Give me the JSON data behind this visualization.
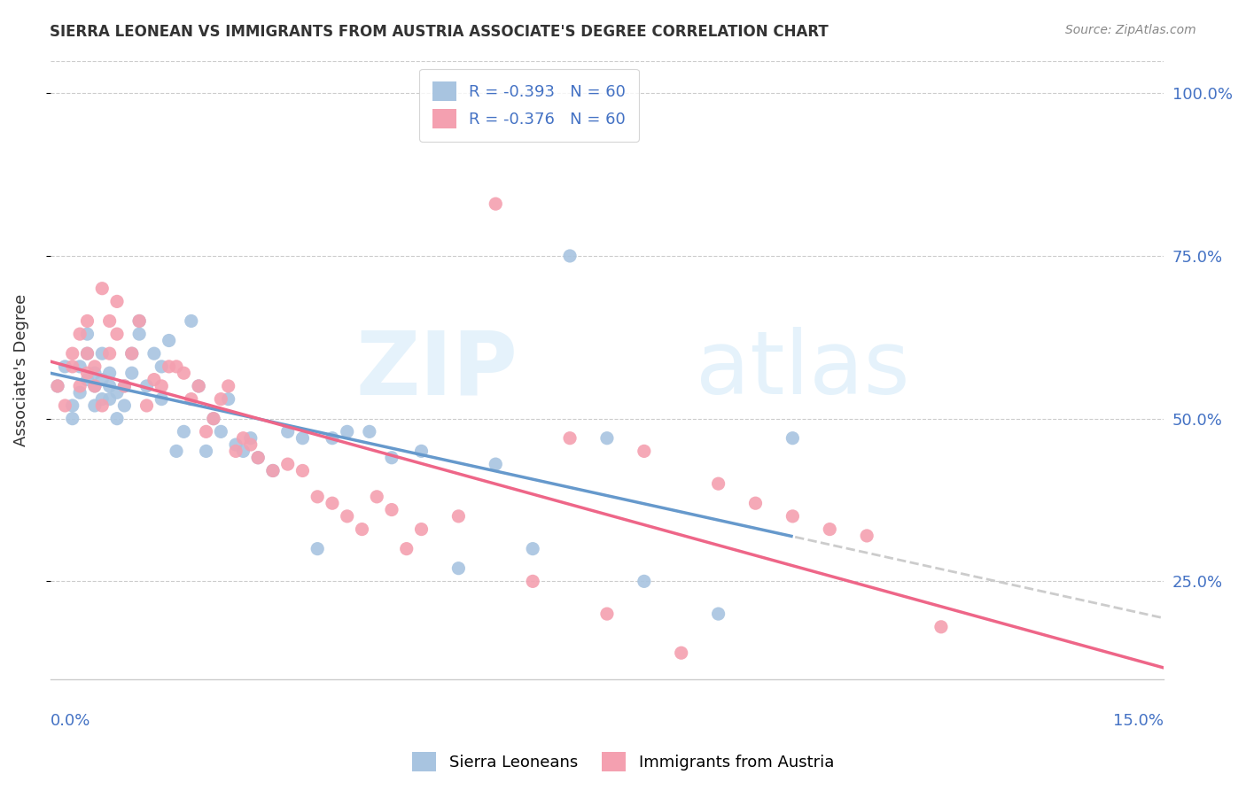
{
  "title": "SIERRA LEONEAN VS IMMIGRANTS FROM AUSTRIA ASSOCIATE'S DEGREE CORRELATION CHART",
  "source": "Source: ZipAtlas.com",
  "ylabel": "Associate's Degree",
  "xmin": 0.0,
  "xmax": 0.15,
  "ymin": 0.1,
  "ymax": 1.05,
  "color_blue": "#a8c4e0",
  "color_pink": "#f4a0b0",
  "color_trendline_blue": "#6699cc",
  "color_trendline_pink": "#ee6688",
  "color_trendline_ext": "#cccccc",
  "sierra_x": [
    0.001,
    0.002,
    0.003,
    0.003,
    0.004,
    0.004,
    0.005,
    0.005,
    0.005,
    0.006,
    0.006,
    0.006,
    0.007,
    0.007,
    0.007,
    0.008,
    0.008,
    0.008,
    0.009,
    0.009,
    0.01,
    0.01,
    0.011,
    0.011,
    0.012,
    0.012,
    0.013,
    0.014,
    0.015,
    0.015,
    0.016,
    0.017,
    0.018,
    0.019,
    0.02,
    0.021,
    0.022,
    0.023,
    0.024,
    0.025,
    0.026,
    0.027,
    0.028,
    0.03,
    0.032,
    0.034,
    0.036,
    0.038,
    0.04,
    0.043,
    0.046,
    0.05,
    0.055,
    0.06,
    0.065,
    0.07,
    0.075,
    0.08,
    0.09,
    0.1
  ],
  "sierra_y": [
    0.55,
    0.58,
    0.5,
    0.52,
    0.54,
    0.58,
    0.56,
    0.6,
    0.63,
    0.52,
    0.55,
    0.57,
    0.53,
    0.56,
    0.6,
    0.53,
    0.55,
    0.57,
    0.5,
    0.54,
    0.52,
    0.55,
    0.57,
    0.6,
    0.63,
    0.65,
    0.55,
    0.6,
    0.53,
    0.58,
    0.62,
    0.45,
    0.48,
    0.65,
    0.55,
    0.45,
    0.5,
    0.48,
    0.53,
    0.46,
    0.45,
    0.47,
    0.44,
    0.42,
    0.48,
    0.47,
    0.3,
    0.47,
    0.48,
    0.48,
    0.44,
    0.45,
    0.27,
    0.43,
    0.3,
    0.75,
    0.47,
    0.25,
    0.2,
    0.47
  ],
  "austria_x": [
    0.001,
    0.002,
    0.003,
    0.003,
    0.004,
    0.004,
    0.005,
    0.005,
    0.005,
    0.006,
    0.006,
    0.007,
    0.007,
    0.008,
    0.008,
    0.009,
    0.009,
    0.01,
    0.011,
    0.012,
    0.013,
    0.014,
    0.015,
    0.016,
    0.017,
    0.018,
    0.019,
    0.02,
    0.021,
    0.022,
    0.023,
    0.024,
    0.025,
    0.026,
    0.027,
    0.028,
    0.03,
    0.032,
    0.034,
    0.036,
    0.038,
    0.04,
    0.042,
    0.044,
    0.046,
    0.048,
    0.05,
    0.055,
    0.06,
    0.065,
    0.07,
    0.075,
    0.08,
    0.085,
    0.09,
    0.095,
    0.1,
    0.105,
    0.11,
    0.12
  ],
  "austria_y": [
    0.55,
    0.52,
    0.58,
    0.6,
    0.55,
    0.63,
    0.57,
    0.6,
    0.65,
    0.55,
    0.58,
    0.52,
    0.7,
    0.65,
    0.6,
    0.63,
    0.68,
    0.55,
    0.6,
    0.65,
    0.52,
    0.56,
    0.55,
    0.58,
    0.58,
    0.57,
    0.53,
    0.55,
    0.48,
    0.5,
    0.53,
    0.55,
    0.45,
    0.47,
    0.46,
    0.44,
    0.42,
    0.43,
    0.42,
    0.38,
    0.37,
    0.35,
    0.33,
    0.38,
    0.36,
    0.3,
    0.33,
    0.35,
    0.83,
    0.25,
    0.47,
    0.2,
    0.45,
    0.14,
    0.4,
    0.37,
    0.35,
    0.33,
    0.32,
    0.18
  ]
}
